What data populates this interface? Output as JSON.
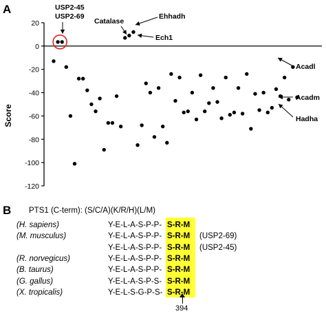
{
  "panel_a": {
    "letter": "A",
    "chart_data": {
      "type": "scatter",
      "ylabel": "Score",
      "xlabel": "",
      "ylim": [
        -120,
        20
      ],
      "yticks": [
        20,
        0,
        -20,
        -40,
        -60,
        -80,
        -100,
        -120
      ],
      "grid": false,
      "points": [
        [
          1,
          -13
        ],
        [
          2,
          3.5
        ],
        [
          3,
          3.5
        ],
        [
          4,
          -18
        ],
        [
          5,
          -60
        ],
        [
          6,
          -101
        ],
        [
          7,
          -28
        ],
        [
          8,
          -28
        ],
        [
          9,
          -38
        ],
        [
          10,
          -50
        ],
        [
          11,
          -56
        ],
        [
          12,
          -45
        ],
        [
          13,
          -89
        ],
        [
          14,
          -66
        ],
        [
          15,
          -66
        ],
        [
          16,
          -43
        ],
        [
          17,
          -69
        ],
        [
          18,
          7
        ],
        [
          19,
          9
        ],
        [
          20,
          12
        ],
        [
          21,
          -85
        ],
        [
          22,
          -68
        ],
        [
          23,
          -32
        ],
        [
          24,
          -40
        ],
        [
          25,
          -78
        ],
        [
          26,
          -36
        ],
        [
          27,
          -69
        ],
        [
          28,
          -83
        ],
        [
          29,
          -24
        ],
        [
          30,
          -47
        ],
        [
          31,
          -27
        ],
        [
          32,
          -57
        ],
        [
          33,
          -56
        ],
        [
          34,
          -40
        ],
        [
          35,
          -63
        ],
        [
          36,
          -25
        ],
        [
          37,
          -56
        ],
        [
          38,
          -49
        ],
        [
          39,
          -36
        ],
        [
          40,
          -48
        ],
        [
          41,
          -62
        ],
        [
          42,
          -27
        ],
        [
          43,
          -59
        ],
        [
          44,
          -57
        ],
        [
          45,
          -36
        ],
        [
          46,
          -58
        ],
        [
          47,
          -24
        ],
        [
          48,
          -71
        ],
        [
          49,
          -41
        ],
        [
          50,
          -55
        ],
        [
          51,
          -40
        ],
        [
          52,
          -57
        ],
        [
          53,
          -53
        ],
        [
          54,
          -37
        ],
        [
          55,
          -43
        ],
        [
          56,
          -27
        ],
        [
          57,
          -46
        ],
        [
          58,
          -18
        ],
        [
          59,
          -44
        ]
      ],
      "highlight_circle": [
        2,
        3
      ],
      "annotations": [
        {
          "label": "USP2-45",
          "point": 2
        },
        {
          "label": "USP2-69",
          "point": 3
        },
        {
          "label": "Catalase",
          "point": 18
        },
        {
          "label": "Ehhadh",
          "point": 20
        },
        {
          "label": "Ech1",
          "point": 19
        },
        {
          "label": "Acadl",
          "point": 58
        },
        {
          "label": "Acadm",
          "point": 59
        },
        {
          "label": "Hadha",
          "point": 57
        }
      ]
    }
  },
  "panel_b": {
    "letter": "B",
    "motif": "PTS1 (C-term): (S/C/A)(K/R/H)(L/M)",
    "position_label": "394",
    "highlight_color": "#ffff33",
    "rows": [
      {
        "species": "(H. sapiens)",
        "prefix": "Y-E-L-A-S-P-P-",
        "srm": "S-R-M",
        "note": ""
      },
      {
        "species": "(M. musculus)",
        "prefix": "Y-E-L-A-S-P-P-",
        "srm": "S-R-M",
        "note": "(USP2-69)"
      },
      {
        "species": "",
        "prefix": "Y-E-L-A-S-P-P-",
        "srm": "S-R-M",
        "note": "(USP2-45)"
      },
      {
        "species": "(R. norvegicus)",
        "prefix": "Y-E-L-A-S-P-P-",
        "srm": "S-R-M",
        "note": ""
      },
      {
        "species": "(B. taurus)",
        "prefix": "Y-E-L-A-S-P-P-",
        "srm": "S-R-M",
        "note": ""
      },
      {
        "species": "(G. gallus)",
        "prefix": "Y-E-L-A-S-P-S-",
        "srm": "S-R-M",
        "note": ""
      },
      {
        "species": "(X. tropicalis)",
        "prefix": "Y-E-L-S-G-P-S-",
        "srm": "S-R-M",
        "note": ""
      }
    ]
  }
}
